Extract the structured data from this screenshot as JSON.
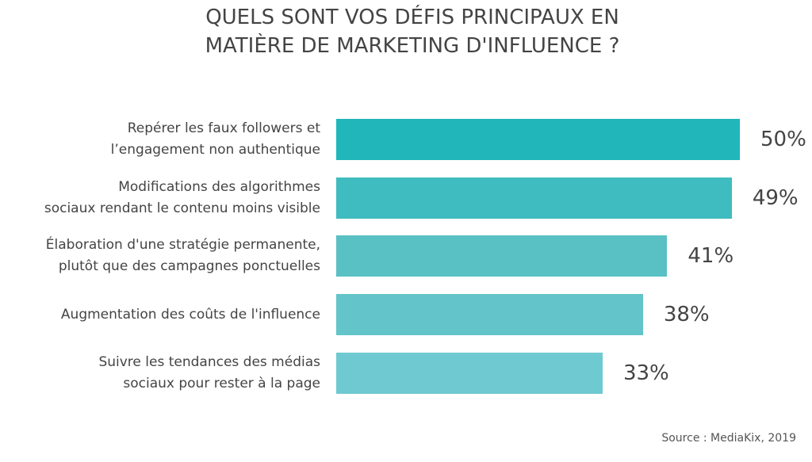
{
  "chart_data": {
    "type": "hbar",
    "title": "QUELS SONT VOS DÉFIS PRINCIPAUX EN\nMATIÈRE DE MARKETING D'INFLUENCE ?",
    "categories": [
      "Repérer les faux followers et\nl’engagement non authentique",
      "Modifications des algorithmes\nsociaux rendant le contenu moins visible",
      "Élaboration d'une stratégie permanente,\nplutôt que des campagnes ponctuelles",
      "Augmentation des coûts de l'influence",
      "Suivre les tendances des médias\nsociaux pour rester à la page"
    ],
    "values": [
      50,
      49,
      41,
      38,
      33
    ],
    "value_labels": [
      "50%",
      "49%",
      "41%",
      "38%",
      "33%"
    ],
    "colors": [
      "#21b6b9",
      "#3fbcbf",
      "#59c0c4",
      "#63c4c9",
      "#6fc9d1"
    ],
    "source": "Source : MediaKix, 2019"
  }
}
